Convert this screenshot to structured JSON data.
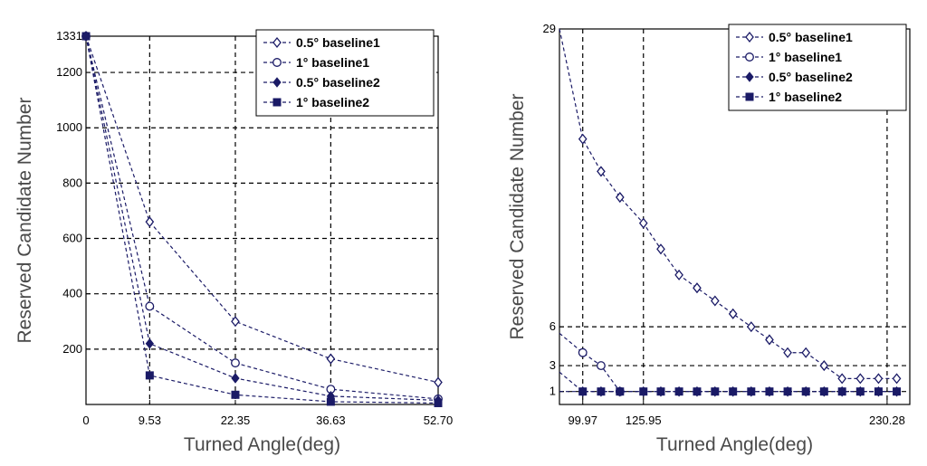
{
  "colors": {
    "series": "#1a1a66",
    "grid": "#000000",
    "axis_title": "#4a4a4a"
  },
  "chart_data": [
    {
      "type": "line",
      "xlabel": "Turned Angle(deg)",
      "ylabel": "Reserved Candidate Number",
      "xlim": [
        0,
        52.7
      ],
      "ylim": [
        0,
        1331
      ],
      "x_ticks": [
        0,
        9.53,
        22.35,
        36.63,
        52.7
      ],
      "x_tick_labels": [
        "0",
        "9.53",
        "22.35",
        "36.63",
        "52.70"
      ],
      "y_ticks": [
        200,
        400,
        600,
        800,
        1000,
        1200,
        1331
      ],
      "y_tick_labels": [
        "200",
        "400",
        "600",
        "800",
        "1000",
        "1200",
        "1331"
      ],
      "grid": true,
      "legend_position": "top-right",
      "series": [
        {
          "name": "0.5°  baseline1",
          "marker": "diamond-open",
          "x": [
            0,
            9.53,
            22.35,
            36.63,
            52.7
          ],
          "y": [
            1331,
            660,
            300,
            165,
            80
          ]
        },
        {
          "name": "1°  baseline1",
          "marker": "circle-open",
          "x": [
            0,
            9.53,
            22.35,
            36.63,
            52.7
          ],
          "y": [
            1331,
            355,
            150,
            55,
            20
          ]
        },
        {
          "name": "0.5°  baseline2",
          "marker": "diamond-filled",
          "x": [
            0,
            9.53,
            22.35,
            36.63,
            52.7
          ],
          "y": [
            1331,
            220,
            95,
            30,
            15
          ]
        },
        {
          "name": "1°  baseline2",
          "marker": "square-filled",
          "x": [
            0,
            9.53,
            22.35,
            36.63,
            52.7
          ],
          "y": [
            1331,
            105,
            35,
            10,
            5
          ]
        }
      ]
    },
    {
      "type": "line",
      "xlabel": "Turned Angle(deg)",
      "ylabel": "Reserved Candidate Number",
      "xlim": [
        90,
        240
      ],
      "ylim": [
        0,
        29
      ],
      "x_ticks": [
        99.97,
        125.95,
        230.28
      ],
      "x_tick_labels": [
        "99.97",
        "125.95",
        "230.28"
      ],
      "y_ticks": [
        1,
        3,
        6,
        29
      ],
      "y_tick_labels": [
        "1",
        "3",
        "6",
        "29"
      ],
      "grid": true,
      "legend_position": "top-right",
      "series": [
        {
          "name": "0.5°  baseline1",
          "marker": "diamond-open",
          "x": [
            90,
            99.97,
            107.8,
            115.9,
            125.95,
            133.4,
            141.2,
            148.9,
            156.6,
            164.3,
            172.1,
            179.9,
            187.7,
            195.5,
            203.3,
            211.0,
            218.8,
            226.6,
            234.4
          ],
          "y": [
            29,
            20.5,
            18,
            16,
            14,
            12,
            10,
            9,
            8,
            7,
            6,
            5,
            4,
            4,
            3,
            2,
            2,
            2,
            2
          ]
        },
        {
          "name": "1°  baseline1",
          "marker": "circle-open",
          "x": [
            90,
            99.97,
            107.8,
            115.9
          ],
          "y": [
            5.5,
            4,
            3,
            1
          ]
        },
        {
          "name": "0.5°  baseline2",
          "marker": "diamond-filled",
          "x": [
            90,
            99.97,
            107.8,
            115.9,
            125.95,
            133.4,
            141.2,
            148.9,
            156.6,
            164.3,
            172.1,
            179.9,
            187.7,
            195.5,
            203.3,
            211.0,
            218.8,
            226.6,
            234.4
          ],
          "y": [
            2.5,
            1,
            1,
            1,
            1,
            1,
            1,
            1,
            1,
            1,
            1,
            1,
            1,
            1,
            1,
            1,
            1,
            1,
            1
          ]
        },
        {
          "name": "1°  baseline2",
          "marker": "square-filled",
          "x": [
            90,
            99.97,
            107.8,
            115.9,
            125.95,
            133.4,
            141.2,
            148.9,
            156.6,
            164.3,
            172.1,
            179.9,
            187.7,
            195.5,
            203.3,
            211.0,
            218.8,
            226.6,
            234.4
          ],
          "y": [
            1,
            1,
            1,
            1,
            1,
            1,
            1,
            1,
            1,
            1,
            1,
            1,
            1,
            1,
            1,
            1,
            1,
            1,
            1
          ]
        }
      ]
    }
  ]
}
